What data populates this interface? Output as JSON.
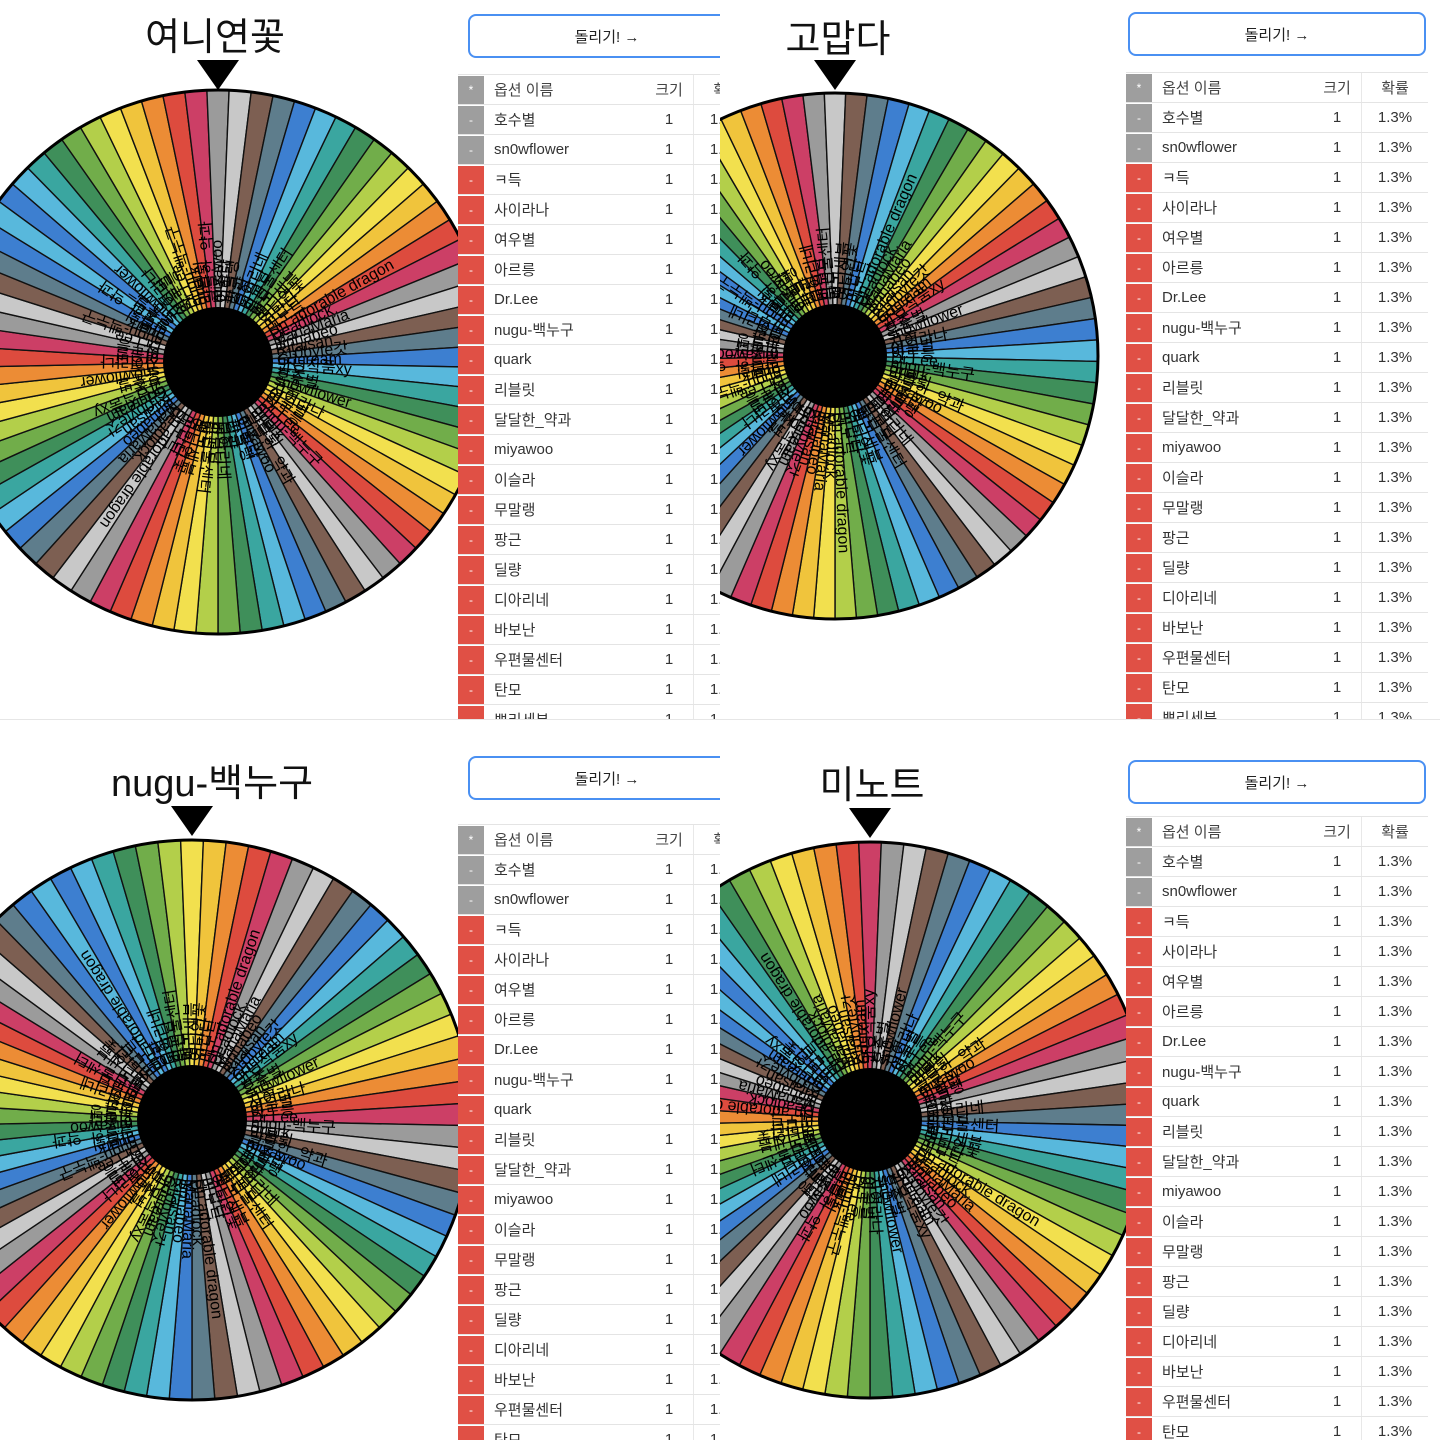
{
  "app": {
    "spin_button_label": "돌리기! →",
    "table_header": {
      "marker_symbol": "*",
      "name_label": "옵션 이름",
      "size_label": "크기",
      "probability_label": "확률"
    },
    "row_marker_symbol": "-",
    "options": [
      {
        "name": "호수별",
        "size": "1",
        "probability": "1.3%",
        "marker_style": "gray"
      },
      {
        "name": "sn0wflower",
        "size": "1",
        "probability": "1.3%",
        "marker_style": "gray"
      },
      {
        "name": "ㅋ득",
        "size": "1",
        "probability": "1.3%",
        "marker_style": "red"
      },
      {
        "name": "사이라나",
        "size": "1",
        "probability": "1.3%",
        "marker_style": "red"
      },
      {
        "name": "여우별",
        "size": "1",
        "probability": "1.3%",
        "marker_style": "red"
      },
      {
        "name": "아르릉",
        "size": "1",
        "probability": "1.3%",
        "marker_style": "red"
      },
      {
        "name": "Dr.Lee",
        "size": "1",
        "probability": "1.3%",
        "marker_style": "red"
      },
      {
        "name": "nugu-백누구",
        "size": "1",
        "probability": "1.3%",
        "marker_style": "red"
      },
      {
        "name": "quark",
        "size": "1",
        "probability": "1.3%",
        "marker_style": "red"
      },
      {
        "name": "리블릿",
        "size": "1",
        "probability": "1.3%",
        "marker_style": "red"
      },
      {
        "name": "달달한_약과",
        "size": "1",
        "probability": "1.3%",
        "marker_style": "red"
      },
      {
        "name": "miyawoo",
        "size": "1",
        "probability": "1.3%",
        "marker_style": "red"
      },
      {
        "name": "이슬라",
        "size": "1",
        "probability": "1.3%",
        "marker_style": "red"
      },
      {
        "name": "무말랭",
        "size": "1",
        "probability": "1.3%",
        "marker_style": "red"
      },
      {
        "name": "팡근",
        "size": "1",
        "probability": "1.3%",
        "marker_style": "red"
      },
      {
        "name": "딜량",
        "size": "1",
        "probability": "1.3%",
        "marker_style": "red"
      },
      {
        "name": "디아리네",
        "size": "1",
        "probability": "1.3%",
        "marker_style": "red"
      },
      {
        "name": "바보난",
        "size": "1",
        "probability": "1.3%",
        "marker_style": "red"
      },
      {
        "name": "우편물센터",
        "size": "1",
        "probability": "1.3%",
        "marker_style": "red"
      },
      {
        "name": "탄모",
        "size": "1",
        "probability": "1.3%",
        "marker_style": "red"
      },
      {
        "name": "뽀리세븐",
        "size": "1",
        "probability": "1.3%",
        "marker_style": "red"
      }
    ],
    "colors": {
      "button_border": "#4a90f2",
      "marker_red": "#e05045",
      "marker_gray": "#9e9e9e",
      "wheel_hub": "#000000",
      "wheel_palette": [
        "#3d7fd0",
        "#58b8dc",
        "#3aa6a0",
        "#3f8f5a",
        "#71ad4a",
        "#b3cf4a",
        "#f2e04e",
        "#f0c43c",
        "#ec8c35",
        "#dd4b3e",
        "#cc3f66",
        "#9b9b9b",
        "#c8c8c8",
        "#7d5f52",
        "#5e7d8c"
      ]
    }
  },
  "quadrants": [
    {
      "title": "여니연꽃"
    },
    {
      "title": "고맙다"
    },
    {
      "title": "nugu-백누구"
    },
    {
      "title": "미노트"
    }
  ],
  "wheel": {
    "segment_count": 77,
    "per_option_size": "1",
    "per_option_probability": "1.3%",
    "legible_labels": [
      "여니연꽃",
      "고맙다",
      "nugu-백누구",
      "미노트",
      "Un adorable dragon",
      "Deadlock",
      "MariaMaria",
      "Jinhabeo",
      "Ritaisan",
      "210byte갓",
      "GJcream",
      "만년작품xy",
      "가온",
      "sn0wflower"
    ]
  }
}
